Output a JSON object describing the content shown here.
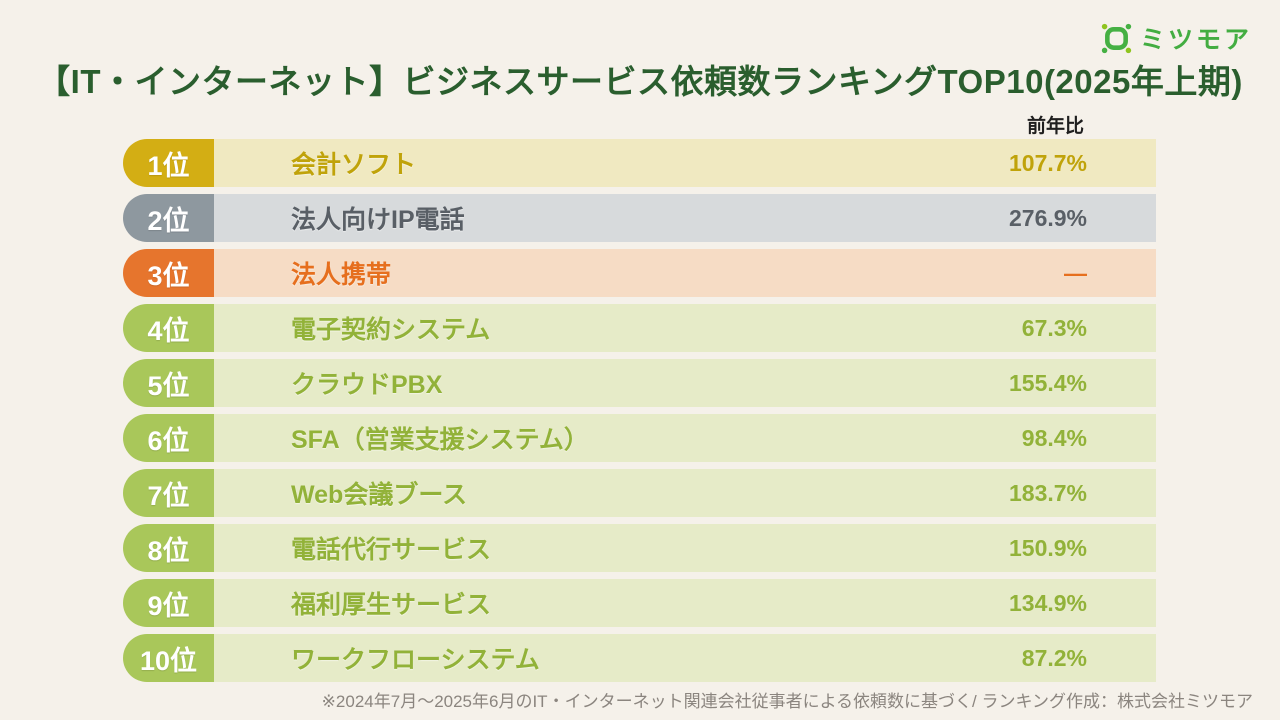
{
  "page": {
    "background_color": "#f5f1ea",
    "title": "【IT・インターネット】ビジネスサービス依頼数ランキングTOP10(2025年上期)",
    "title_color": "#2a5e2e",
    "footnote": "※2024年7月〜2025年6月のIT・インターネット関連会社従事者による依頼数に基づく/ ランキング作成：株式会社ミツモア"
  },
  "logo": {
    "text": "ミツモア",
    "color": "#43ad41",
    "icon": "meetsmore-frame-icon",
    "icon_dot_color": "#8fc41f"
  },
  "chart_data": {
    "type": "table",
    "title": "【IT・インターネット】ビジネスサービス依頼数ランキングTOP10(2025年上期)",
    "columns": [
      "順位",
      "サービス名",
      "前年比"
    ],
    "value_column_header": "前年比",
    "rows": [
      {
        "rank": "1位",
        "service": "会計ソフト",
        "yoy": "107.7%",
        "badge_color": "#d3ae14",
        "row_bg": "#f0e9c1",
        "text_color": "#c0a30a"
      },
      {
        "rank": "2位",
        "service": "法人向けIP電話",
        "yoy": "276.9%",
        "badge_color": "#8e989f",
        "row_bg": "#d7dadc",
        "text_color": "#595f66"
      },
      {
        "rank": "3位",
        "service": "法人携帯",
        "yoy": "—",
        "badge_color": "#e6752d",
        "row_bg": "#f6dcc5",
        "text_color": "#e66f1e"
      },
      {
        "rank": "4位",
        "service": "電子契約システム",
        "yoy": "67.3%",
        "badge_color": "#a9c75a",
        "row_bg": "#e6ebc8",
        "text_color": "#92b239"
      },
      {
        "rank": "5位",
        "service": "クラウドPBX",
        "yoy": "155.4%",
        "badge_color": "#a9c75a",
        "row_bg": "#e6ebc8",
        "text_color": "#92b239"
      },
      {
        "rank": "6位",
        "service": "SFA（営業支援システム）",
        "yoy": "98.4%",
        "badge_color": "#a9c75a",
        "row_bg": "#e6ebc8",
        "text_color": "#92b239"
      },
      {
        "rank": "7位",
        "service": "Web会議ブース",
        "yoy": "183.7%",
        "badge_color": "#a9c75a",
        "row_bg": "#e6ebc8",
        "text_color": "#92b239"
      },
      {
        "rank": "8位",
        "service": "電話代行サービス",
        "yoy": "150.9%",
        "badge_color": "#a9c75a",
        "row_bg": "#e6ebc8",
        "text_color": "#92b239"
      },
      {
        "rank": "9位",
        "service": "福利厚生サービス",
        "yoy": "134.9%",
        "badge_color": "#a9c75a",
        "row_bg": "#e6ebc8",
        "text_color": "#92b239"
      },
      {
        "rank": "10位",
        "service": "ワークフローシステム",
        "yoy": "87.2%",
        "badge_color": "#a9c75a",
        "row_bg": "#e6ebc8",
        "text_color": "#92b239"
      }
    ]
  }
}
